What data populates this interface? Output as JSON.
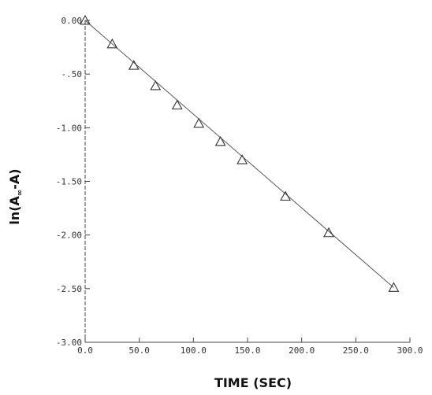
{
  "chart_data": {
    "type": "scatter",
    "title": "",
    "xlabel": "TIME (SEC)",
    "ylabel_parts": {
      "pre": "ln(A",
      "sub": "∞",
      "post": "-A)"
    },
    "xlim": [
      0,
      300
    ],
    "ylim": [
      -3.0,
      0.0
    ],
    "x_ticks": [
      0,
      50,
      100,
      150,
      200,
      250,
      300
    ],
    "x_tick_labels": [
      "0.0",
      "50.0",
      "100.0",
      "150.0",
      "200.0",
      "250.0",
      "300.0"
    ],
    "y_ticks": [
      0,
      -0.5,
      -1.0,
      -1.5,
      -2.0,
      -2.5,
      -3.0
    ],
    "y_tick_labels": [
      "0.00",
      "-.50",
      "-1.00",
      "-1.50",
      "-2.00",
      "-2.50",
      "-3.00"
    ],
    "grid": false,
    "series": [
      {
        "marker": "triangle",
        "x": [
          0,
          25,
          45,
          65,
          85,
          105,
          125,
          145,
          185,
          225,
          285
        ],
        "y": [
          0.0,
          -0.22,
          -0.42,
          -0.61,
          -0.79,
          -0.96,
          -1.13,
          -1.3,
          -1.64,
          -1.98,
          -2.49
        ]
      }
    ],
    "fit_line": {
      "x": [
        0,
        285
      ],
      "y": [
        0.0,
        -2.49
      ]
    },
    "colors": {
      "axis": "#444444",
      "marker": "#333333",
      "line": "#555555"
    }
  }
}
